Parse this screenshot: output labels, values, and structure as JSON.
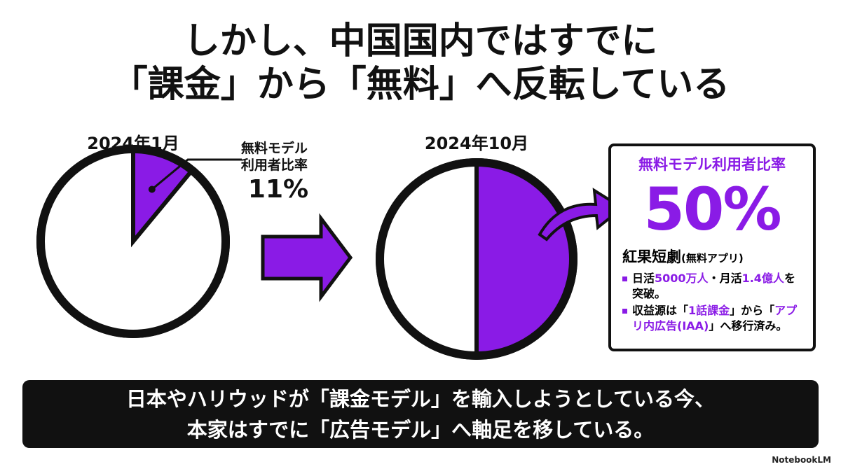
{
  "title": [
    "しかし、中国国内ではすでに",
    "「課金」から「無料」へ反転している"
  ],
  "chart_data": [
    {
      "type": "pie",
      "title": "2024年1月",
      "categories": [
        "無料モデル利用者比率",
        null
      ],
      "values": [
        11,
        89
      ],
      "value_labels": [
        "11%",
        null
      ],
      "colors": [
        "#8a1be6",
        "#ffffff"
      ]
    },
    {
      "type": "pie",
      "title": "2024年10月",
      "categories": [
        "無料モデル利用者比率",
        null
      ],
      "values": [
        50,
        50
      ],
      "value_labels": [
        "50%",
        null
      ],
      "colors": [
        "#8a1be6",
        "#ffffff"
      ]
    }
  ],
  "callout": {
    "app": "紅果短劇",
    "app_note": "(無料アプリ)",
    "bullets": [
      [
        "日活",
        "5000万人",
        "・月活",
        "1.4億人",
        "を突破。"
      ],
      [
        "収益源は「",
        "1話課金",
        "」から「",
        "アプリ内広告(IAA)",
        "」へ移行済み。"
      ]
    ]
  },
  "banner": [
    "日本やハリウッドが「課金モデル」を輸入しようとしている今、",
    "本家はすでに「広告モデル」へ軸足を移している。"
  ],
  "logo": "NotebookLM"
}
